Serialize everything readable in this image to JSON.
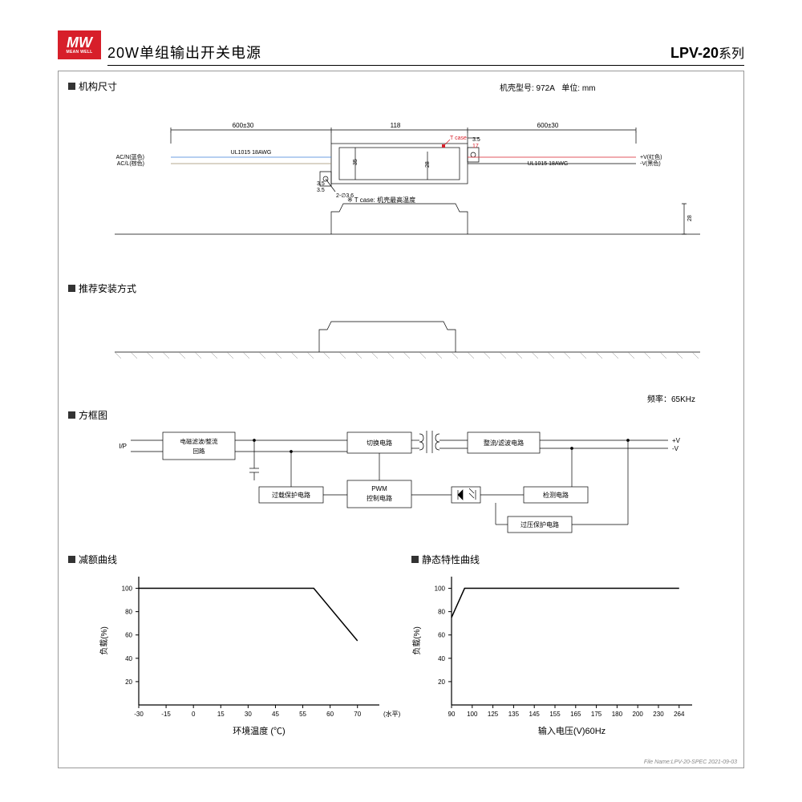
{
  "logo": {
    "mw": "MW",
    "sub": "MEAN WELL"
  },
  "header": {
    "title_cn": "20W单组输出开关电源",
    "model": "LPV-20",
    "series": "系列"
  },
  "sections": {
    "mech": "机构尺寸",
    "mount": "推荐安装方式",
    "block": "方框图",
    "derate": "减额曲线",
    "static": "静态特性曲线"
  },
  "mech": {
    "case_label": "机壳型号: 972A",
    "unit": "单位: mm",
    "dim_600": "600±30",
    "dim_118": "118",
    "dim_35": "35",
    "dim_28": "28",
    "dim_35b": "3.5",
    "dim_17": "17",
    "hole": "2-∅3.6",
    "wire": "UL1015 18AWG",
    "tcase": "T case",
    "tcase_note": "※ T case: 机壳最高温度",
    "acn": "AC/N(蓝色)",
    "acl": "AC/L(棕色)",
    "vp": "+V(红色)",
    "vn": "-V(黑色)"
  },
  "block": {
    "freq": "频率：65KHz",
    "ip": "I/P",
    "box1": "电磁滤波/整流\n回路",
    "box2": "切换电路",
    "box3": "整流/滤波电路",
    "box4": "过载保护电路",
    "box5": "PWM\n控制电路",
    "box6": "检测电路",
    "box7": "过压保护电路",
    "vp": "+V",
    "vn": "-V"
  },
  "charts": {
    "derate": {
      "ylabel": "负载(%)",
      "xlabel": "环境温度 (℃)",
      "xtitle_suffix": "(水平)",
      "xticks": [
        "-30",
        "-15",
        "0",
        "15",
        "30",
        "45",
        "55",
        "60",
        "70"
      ],
      "yticks": [
        "20",
        "40",
        "60",
        "80",
        "100"
      ],
      "line": [
        [
          -30,
          100
        ],
        [
          50,
          100
        ],
        [
          70,
          55
        ]
      ],
      "xlim": [
        -30,
        80
      ],
      "ylim": [
        0,
        110
      ]
    },
    "static": {
      "ylabel": "负载(%)",
      "xlabel": "输入电压(V)60Hz",
      "xticks": [
        "90",
        "100",
        "125",
        "135",
        "145",
        "155",
        "165",
        "175",
        "180",
        "200",
        "230",
        "264"
      ],
      "yticks": [
        "20",
        "40",
        "60",
        "80",
        "100"
      ],
      "line": [
        [
          90,
          75
        ],
        [
          100,
          100
        ],
        [
          264,
          100
        ]
      ],
      "xlim": [
        85,
        270
      ],
      "ylim": [
        0,
        110
      ]
    }
  },
  "colors": {
    "brand": "#d71f2a",
    "line": "#000",
    "red": "#d71f2a"
  },
  "footer": "File Name:LPV-20-SPEC   2021-09-03"
}
